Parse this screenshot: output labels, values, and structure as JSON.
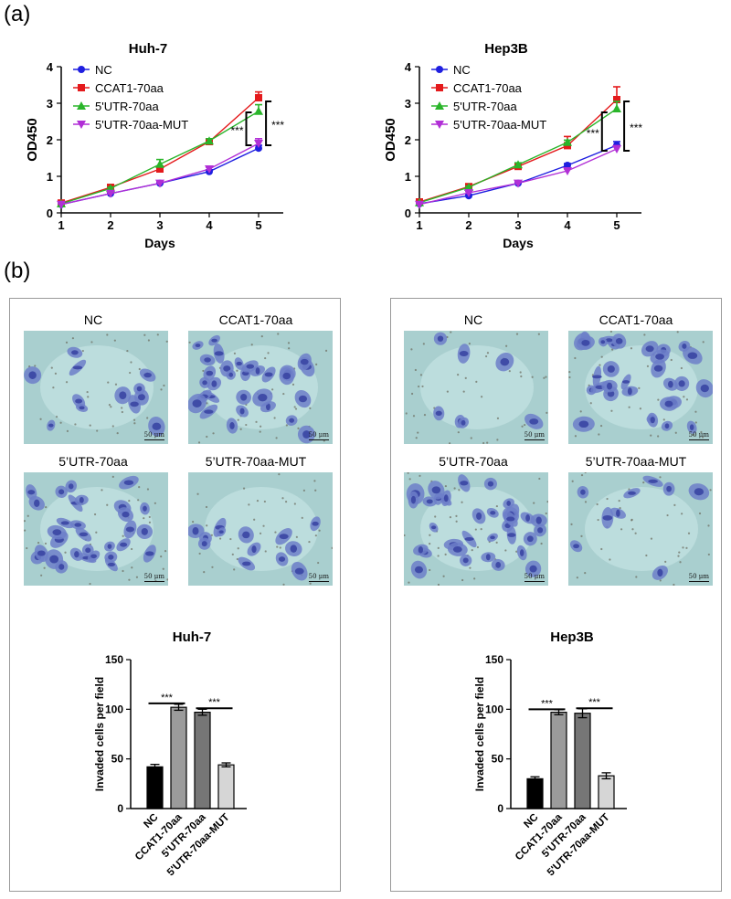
{
  "panel_a_label": "(a)",
  "panel_b_label": "(b)",
  "legend_labels": [
    "NC",
    "CCAT1-70aa",
    "5'UTR-70aa",
    "5'UTR-70aa-MUT"
  ],
  "series_colors": [
    "#1f1fe0",
    "#e41a1c",
    "#2ab52a",
    "#b12fd6"
  ],
  "significance": "***",
  "micro_labels": [
    "NC",
    "CCAT1-70aa",
    "5’UTR-70aa",
    "5’UTR-70aa-MUT"
  ],
  "scale_label": "50 μm",
  "chart_data": [
    {
      "type": "line",
      "title": "Huh-7",
      "xlabel": "Days",
      "ylabel": "OD450",
      "x": [
        1,
        2,
        3,
        4,
        5
      ],
      "xlim": [
        1,
        5.5
      ],
      "ylim": [
        0,
        4
      ],
      "xticks": [
        "1",
        "2",
        "3",
        "4",
        "5"
      ],
      "yticks": [
        "0",
        "1",
        "2",
        "3",
        "4"
      ],
      "series": [
        {
          "name": "NC",
          "values": [
            0.23,
            0.53,
            0.81,
            1.13,
            1.77
          ],
          "errors": [
            0.02,
            0.03,
            0.04,
            0.05,
            0.08
          ]
        },
        {
          "name": "CCAT1-70aa",
          "values": [
            0.27,
            0.7,
            1.2,
            1.95,
            3.15
          ],
          "errors": [
            0.02,
            0.03,
            0.05,
            0.07,
            0.16
          ]
        },
        {
          "name": "5'UTR-70aa",
          "values": [
            0.25,
            0.67,
            1.33,
            1.97,
            2.78
          ],
          "errors": [
            0.02,
            0.03,
            0.13,
            0.06,
            0.18
          ]
        },
        {
          "name": "5'UTR-70aa-MUT",
          "values": [
            0.23,
            0.53,
            0.81,
            1.2,
            1.9
          ],
          "errors": [
            0.02,
            0.03,
            0.04,
            0.05,
            0.13
          ]
        }
      ],
      "brackets": [
        {
          "label": "***",
          "x": 4.75,
          "y1": 1.85,
          "y2": 2.75
        },
        {
          "label": "***",
          "x": 5.15,
          "y1": 1.85,
          "y2": 3.05
        }
      ]
    },
    {
      "type": "line",
      "title": "Hep3B",
      "xlabel": "Days",
      "ylabel": "OD450",
      "x": [
        1,
        2,
        3,
        4,
        5
      ],
      "xlim": [
        1,
        5.5
      ],
      "ylim": [
        0,
        4
      ],
      "xticks": [
        "1",
        "2",
        "3",
        "4",
        "5"
      ],
      "yticks": [
        "0",
        "1",
        "2",
        "3",
        "4"
      ],
      "series": [
        {
          "name": "NC",
          "values": [
            0.25,
            0.47,
            0.81,
            1.3,
            1.85
          ],
          "errors": [
            0.02,
            0.03,
            0.04,
            0.05,
            0.1
          ]
        },
        {
          "name": "CCAT1-70aa",
          "values": [
            0.3,
            0.72,
            1.27,
            1.84,
            3.1
          ],
          "errors": [
            0.02,
            0.03,
            0.05,
            0.25,
            0.35
          ]
        },
        {
          "name": "5'UTR-70aa",
          "values": [
            0.28,
            0.7,
            1.32,
            1.93,
            2.85
          ],
          "errors": [
            0.02,
            0.03,
            0.05,
            0.06,
            0.2
          ]
        },
        {
          "name": "5'UTR-70aa-MUT",
          "values": [
            0.23,
            0.55,
            0.81,
            1.15,
            1.75
          ],
          "errors": [
            0.02,
            0.03,
            0.04,
            0.05,
            0.09
          ]
        }
      ],
      "brackets": [
        {
          "label": "***",
          "x": 4.7,
          "y1": 1.7,
          "y2": 2.75
        },
        {
          "label": "***",
          "x": 5.15,
          "y1": 1.7,
          "y2": 3.05
        }
      ]
    },
    {
      "type": "bar",
      "title": "Huh-7",
      "xlabel": "",
      "ylabel": "Invaded cells per field",
      "categories": [
        "NC",
        "CCAT1-70aa",
        "5'UTR-70aa",
        "5'UTR-70aa-MUT"
      ],
      "values": [
        42,
        102,
        97,
        44
      ],
      "errors": [
        2.5,
        3,
        3,
        2
      ],
      "bar_colors": [
        "#000000",
        "#9b9b9b",
        "#767676",
        "#d6d6d6"
      ],
      "ylim": [
        0,
        150
      ],
      "yticks": [
        "0",
        "50",
        "100",
        "150"
      ],
      "significance": [
        {
          "label": "***",
          "from": 0,
          "to": 1,
          "y": 106
        },
        {
          "label": "***",
          "from": 2,
          "to": 3,
          "y": 101
        }
      ]
    },
    {
      "type": "bar",
      "title": "Hep3B",
      "xlabel": "",
      "ylabel": "Invaded cells per field",
      "categories": [
        "NC",
        "CCAT1-70aa",
        "5'UTR-70aa",
        "5'UTR-70aa-MUT"
      ],
      "values": [
        30,
        97,
        96,
        33
      ],
      "errors": [
        2,
        2.5,
        4.5,
        3
      ],
      "bar_colors": [
        "#000000",
        "#9b9b9b",
        "#767676",
        "#d6d6d6"
      ],
      "ylim": [
        0,
        150
      ],
      "yticks": [
        "0",
        "50",
        "100",
        "150"
      ],
      "significance": [
        {
          "label": "***",
          "from": 0,
          "to": 1,
          "y": 100
        },
        {
          "label": "***",
          "from": 2,
          "to": 3,
          "y": 101
        }
      ]
    }
  ]
}
